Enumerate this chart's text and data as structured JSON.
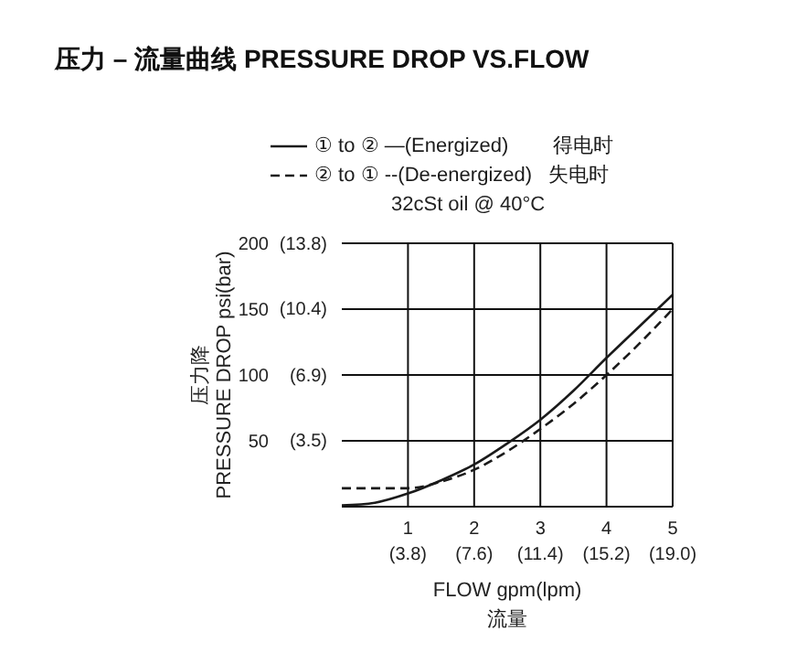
{
  "chart_data": {
    "type": "line",
    "title": "压力 – 流量曲线 PRESSURE DROP VS.FLOW",
    "xlabel": "FLOW gpm(lpm)\n流量",
    "ylabel": "压力降\nPRESSURE DROP psi(bar)",
    "annotations": [
      "32cSt oil @ 40°C"
    ],
    "legend": "top",
    "grid": true,
    "marker": "none",
    "xlim": [
      0,
      5
    ],
    "ylim": [
      0,
      200
    ],
    "xticks": [
      1,
      2,
      3,
      4,
      5
    ],
    "yticks": [
      50,
      100,
      150,
      200
    ],
    "x2lim": [
      0,
      19
    ],
    "x2ticks": [
      {
        "value": 3.8,
        "label": "(3.8)"
      },
      {
        "value": 7.6,
        "label": "(7.6)"
      },
      {
        "value": 11.4,
        "label": "(11.4)"
      },
      {
        "value": 15.2,
        "label": "(15.2)"
      },
      {
        "value": 19,
        "label": "(19.0)"
      }
    ],
    "y2lim": [
      0,
      13.8
    ],
    "y2ticks": [
      {
        "value": 3.5,
        "label": "(3.5)"
      },
      {
        "value": 6.9,
        "label": "(6.9)"
      },
      {
        "value": 10.4,
        "label": "(10.4)"
      },
      {
        "value": 13.8,
        "label": "(13.8)"
      }
    ],
    "x": [
      0,
      0.5,
      1,
      1.5,
      2,
      2.5,
      3,
      3.5,
      4,
      4.5,
      5
    ],
    "series": [
      {
        "name": "① to ② —(Energized)        得电时",
        "color": "#1a1a1a",
        "line_style": "solid",
        "values": [
          1,
          3,
          10,
          20,
          32,
          48,
          66,
          88,
          113,
          137,
          161
        ]
      },
      {
        "name": "② to ① --(De-energized)   失电时",
        "color": "#1a1a1a",
        "line_style": "dashed",
        "values": [
          14,
          14,
          14,
          19,
          28,
          42,
          59,
          78,
          100,
          124,
          150
        ]
      }
    ]
  }
}
